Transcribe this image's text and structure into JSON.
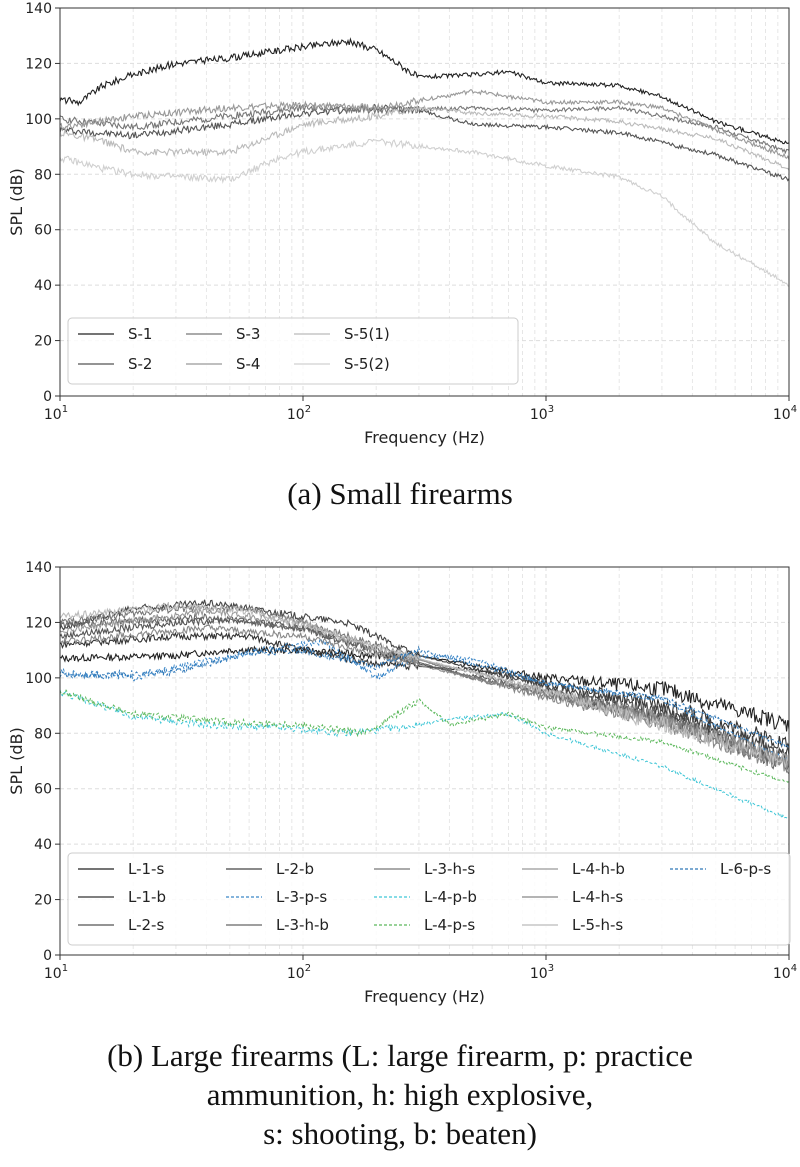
{
  "chart_data": [
    {
      "type": "line",
      "caption": "(a)  Small firearms",
      "xlabel": "Frequency (Hz)",
      "ylabel": "SPL (dB)",
      "xscale": "log",
      "xlim": [
        10,
        10000
      ],
      "ylim": [
        0,
        140
      ],
      "xticks": [
        "10",
        "1",
        "10",
        "2",
        "10",
        "3",
        "10",
        "4"
      ],
      "yticks": [
        "0",
        "20",
        "40",
        "60",
        "80",
        "100",
        "120",
        "140"
      ],
      "grid": true,
      "legend": {
        "placement": "lower-left",
        "columns": 4
      },
      "series": [
        {
          "name": "S-1",
          "color": "#222222",
          "dash": false,
          "points": [
            [
              10,
              107
            ],
            [
              12,
              106
            ],
            [
              15,
              112
            ],
            [
              20,
              116
            ],
            [
              30,
              120
            ],
            [
              50,
              122
            ],
            [
              100,
              126
            ],
            [
              150,
              128
            ],
            [
              200,
              125
            ],
            [
              300,
              115
            ],
            [
              500,
              116
            ],
            [
              700,
              117
            ],
            [
              1000,
              113
            ],
            [
              2000,
              112
            ],
            [
              3000,
              108
            ],
            [
              5000,
              99
            ],
            [
              10000,
              91
            ]
          ]
        },
        {
          "name": "S-2",
          "color": "#555555",
          "dash": false,
          "points": [
            [
              10,
              96
            ],
            [
              20,
              94
            ],
            [
              50,
              98
            ],
            [
              100,
              102
            ],
            [
              200,
              104
            ],
            [
              300,
              103
            ],
            [
              500,
              98
            ],
            [
              1000,
              97
            ],
            [
              2000,
              95
            ],
            [
              5000,
              87
            ],
            [
              10000,
              78
            ]
          ]
        },
        {
          "name": "S-3",
          "color": "#777777",
          "dash": false,
          "points": [
            [
              10,
              100
            ],
            [
              20,
              97
            ],
            [
              50,
              101
            ],
            [
              100,
              104
            ],
            [
              200,
              103
            ],
            [
              500,
              104
            ],
            [
              1000,
              103
            ],
            [
              2000,
              104
            ],
            [
              5000,
              97
            ],
            [
              10000,
              88
            ]
          ]
        },
        {
          "name": "S-4",
          "color": "#999999",
          "dash": false,
          "points": [
            [
              10,
              97
            ],
            [
              20,
              101
            ],
            [
              50,
              104
            ],
            [
              100,
              105
            ],
            [
              200,
              104
            ],
            [
              500,
              110
            ],
            [
              1000,
              106
            ],
            [
              2000,
              106
            ],
            [
              3000,
              104
            ],
            [
              5000,
              96
            ],
            [
              10000,
              86
            ]
          ]
        },
        {
          "name": "S-5(1)",
          "color": "#bbbbbb",
          "dash": false,
          "points": [
            [
              10,
              95
            ],
            [
              15,
              92
            ],
            [
              20,
              88
            ],
            [
              30,
              88
            ],
            [
              50,
              88
            ],
            [
              100,
              98
            ],
            [
              200,
              101
            ],
            [
              300,
              104
            ],
            [
              500,
              102
            ],
            [
              1000,
              101
            ],
            [
              2000,
              99
            ],
            [
              5000,
              93
            ],
            [
              10000,
              82
            ]
          ]
        },
        {
          "name": "S-5(2)",
          "color": "#d0d0d0",
          "dash": false,
          "points": [
            [
              10,
              86
            ],
            [
              15,
              82
            ],
            [
              20,
              80
            ],
            [
              50,
              78
            ],
            [
              80,
              86
            ],
            [
              100,
              88
            ],
            [
              200,
              92
            ],
            [
              500,
              88
            ],
            [
              1000,
              83
            ],
            [
              2000,
              79
            ],
            [
              3000,
              72
            ],
            [
              5000,
              55
            ],
            [
              7000,
              48
            ],
            [
              10000,
              40
            ]
          ]
        }
      ]
    },
    {
      "type": "line",
      "caption_lines": [
        "(b)  Large firearms (L:  large firearm,  p:  practice",
        "ammunition,  h:  high explosive,",
        "s:  shooting,  b:  beaten)"
      ],
      "xlabel": "Frequency (Hz)",
      "ylabel": "SPL (dB)",
      "xscale": "log",
      "xlim": [
        10,
        10000
      ],
      "ylim": [
        0,
        140
      ],
      "xticks": [
        "10",
        "1",
        "10",
        "2",
        "10",
        "3",
        "10",
        "4"
      ],
      "yticks": [
        "0",
        "20",
        "40",
        "60",
        "80",
        "100",
        "120",
        "140"
      ],
      "grid": true,
      "legend": {
        "placement": "lower-left",
        "columns": 5
      },
      "series": [
        {
          "name": "L-1-s",
          "color": "#222222",
          "dash": false,
          "points": [
            [
              10,
              107
            ],
            [
              30,
              108
            ],
            [
              50,
              110
            ],
            [
              100,
              110
            ],
            [
              200,
              108
            ],
            [
              300,
              108
            ],
            [
              1000,
              100
            ],
            [
              3000,
              96
            ],
            [
              10000,
              83
            ]
          ]
        },
        {
          "name": "L-1-b",
          "color": "#333333",
          "dash": false,
          "points": [
            [
              10,
              112
            ],
            [
              30,
              115
            ],
            [
              60,
              115
            ],
            [
              100,
              110
            ],
            [
              200,
              105
            ],
            [
              500,
              103
            ],
            [
              1000,
              98
            ],
            [
              3000,
              90
            ],
            [
              10000,
              76
            ]
          ]
        },
        {
          "name": "L-2-s",
          "color": "#555555",
          "dash": false,
          "points": [
            [
              10,
              115
            ],
            [
              30,
              120
            ],
            [
              50,
              121
            ],
            [
              100,
              118
            ],
            [
              150,
              113
            ],
            [
              300,
              105
            ],
            [
              1000,
              95
            ],
            [
              3000,
              85
            ],
            [
              10000,
              70
            ]
          ]
        },
        {
          "name": "L-2-b",
          "color": "#444444",
          "dash": false,
          "points": [
            [
              10,
              118
            ],
            [
              20,
              125
            ],
            [
              40,
              127
            ],
            [
              60,
              125
            ],
            [
              100,
              122
            ],
            [
              150,
              120
            ],
            [
              300,
              108
            ],
            [
              1000,
              97
            ],
            [
              3000,
              88
            ],
            [
              10000,
              72
            ]
          ]
        },
        {
          "name": "L-3-p-s",
          "color": "#3a86c8",
          "dash": true,
          "points": [
            [
              10,
              102
            ],
            [
              20,
              100
            ],
            [
              40,
              106
            ],
            [
              80,
              111
            ],
            [
              120,
              113
            ],
            [
              150,
              108
            ],
            [
              200,
              100
            ],
            [
              300,
              108
            ],
            [
              500,
              107
            ],
            [
              1000,
              98
            ],
            [
              3000,
              92
            ],
            [
              10000,
              70
            ]
          ]
        },
        {
          "name": "L-3-h-b",
          "color": "#666666",
          "dash": false,
          "points": [
            [
              10,
              119
            ],
            [
              40,
              122
            ],
            [
              100,
              118
            ],
            [
              200,
              110
            ],
            [
              500,
              100
            ],
            [
              1000,
              95
            ],
            [
              3000,
              86
            ],
            [
              10000,
              68
            ]
          ]
        },
        {
          "name": "L-3-h-s",
          "color": "#777777",
          "dash": false,
          "points": [
            [
              10,
              120
            ],
            [
              30,
              125
            ],
            [
              60,
              125
            ],
            [
              100,
              120
            ],
            [
              200,
              112
            ],
            [
              500,
              100
            ],
            [
              1000,
              94
            ],
            [
              3000,
              85
            ],
            [
              10000,
              70
            ]
          ]
        },
        {
          "name": "L-4-p-b",
          "color": "#3fc6d6",
          "dash": true,
          "points": [
            [
              10,
              95
            ],
            [
              20,
              86
            ],
            [
              40,
              83
            ],
            [
              80,
              82
            ],
            [
              150,
              80
            ],
            [
              250,
              82
            ],
            [
              400,
              85
            ],
            [
              700,
              87
            ],
            [
              1000,
              80
            ],
            [
              3000,
              68
            ],
            [
              10000,
              49
            ]
          ]
        },
        {
          "name": "L-4-p-s",
          "color": "#5cb85c",
          "dash": true,
          "points": [
            [
              10,
              95
            ],
            [
              20,
              87
            ],
            [
              50,
              84
            ],
            [
              100,
              83
            ],
            [
              180,
              80
            ],
            [
              300,
              92
            ],
            [
              400,
              83
            ],
            [
              700,
              87
            ],
            [
              1000,
              82
            ],
            [
              3000,
              77
            ],
            [
              10000,
              62
            ]
          ]
        },
        {
          "name": "L-4-h-b",
          "color": "#999999",
          "dash": false,
          "points": [
            [
              10,
              117
            ],
            [
              40,
              124
            ],
            [
              100,
              120
            ],
            [
              200,
              110
            ],
            [
              500,
              102
            ],
            [
              1000,
              95
            ],
            [
              3000,
              85
            ],
            [
              10000,
              70
            ]
          ]
        },
        {
          "name": "L-4-h-s",
          "color": "#888888",
          "dash": false,
          "points": [
            [
              10,
              113
            ],
            [
              40,
              118
            ],
            [
              100,
              115
            ],
            [
              200,
              108
            ],
            [
              500,
              100
            ],
            [
              1000,
              93
            ],
            [
              3000,
              84
            ],
            [
              10000,
              68
            ]
          ]
        },
        {
          "name": "L-5-h-s",
          "color": "#bbbbbb",
          "dash": false,
          "points": [
            [
              10,
              122
            ],
            [
              30,
              126
            ],
            [
              60,
              124
            ],
            [
              100,
              119
            ],
            [
              200,
              111
            ],
            [
              1000,
              95
            ],
            [
              10000,
              70
            ]
          ]
        },
        {
          "name": "L-6-p-s",
          "color": "#2f78b8",
          "dash": true,
          "points": [
            [
              10,
              101
            ],
            [
              30,
              102
            ],
            [
              60,
              109
            ],
            [
              100,
              110
            ],
            [
              200,
              104
            ],
            [
              300,
              110
            ],
            [
              1000,
              98
            ],
            [
              3000,
              93
            ],
            [
              10000,
              75
            ]
          ]
        }
      ]
    }
  ]
}
